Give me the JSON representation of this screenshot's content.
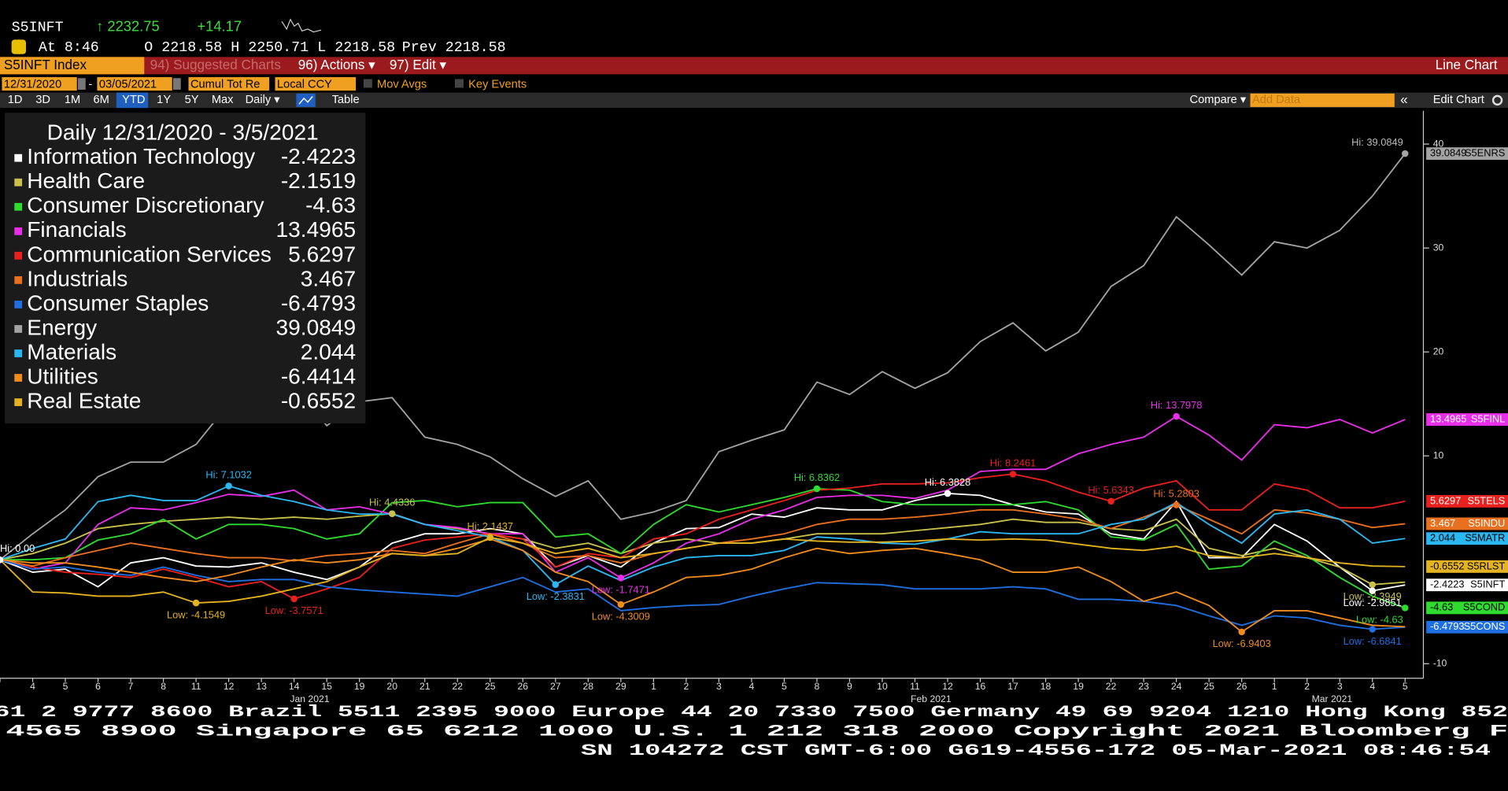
{
  "header": {
    "ticker": "S5INFT",
    "last": "↑ 2232.75",
    "change": "+14.17",
    "time": "At 8:46",
    "open": "O 2218.58",
    "high": "H 2250.71",
    "low": "L 2218.58",
    "prev": "Prev 2218.58"
  },
  "menu": {
    "security": "S5INFT Index",
    "suggested": "94) Suggested Charts",
    "actions": "96) Actions ▾",
    "edit": "97) Edit ▾",
    "view": "Line Chart"
  },
  "settings": {
    "start": "12/31/2020",
    "to": "-",
    "end": "03/05/2021",
    "field": "Cumul Tot Re",
    "currency": "Local CCY",
    "mov_avgs": "Mov Avgs",
    "key_events": "Key Events"
  },
  "toolbar": {
    "periods": [
      "1D",
      "3D",
      "1M",
      "6M",
      "YTD",
      "1Y",
      "5Y",
      "Max"
    ],
    "frequency": "Daily ▾",
    "table": "Table",
    "compare": "Compare ▾",
    "add_data": "Add Data",
    "collapse": "«",
    "edit_chart": "Edit Chart"
  },
  "footer": [
    "61 2 9777 8600 Brazil 5511 2395 9000 Europe 44 20 7330 7500 Germany 49 69 9204 1210 Hong Kong 852",
    "4565 8900      Singapore 65 6212 1000      U.S. 1 212 318 2000      Copyright 2021 Bloomberg F",
    "SN 104272 CST  GMT-6:00 G619-4556-172 05-Mar-2021 08:46:54"
  ],
  "chart_data": {
    "type": "line",
    "legend_title": "Daily 12/31/2020 - 3/5/2021",
    "months": [
      "Jan 2021",
      "Feb 2021",
      "Mar 2021"
    ],
    "categories": [
      null,
      "4",
      "5",
      "6",
      "7",
      "8",
      "11",
      "12",
      "13",
      "14",
      "15",
      "19",
      "20",
      "21",
      "22",
      "25",
      "26",
      "27",
      "28",
      "29",
      "1",
      "2",
      "3",
      "4",
      "5",
      "8",
      "9",
      "10",
      "11",
      "12",
      "16",
      "17",
      "18",
      "19",
      "22",
      "23",
      "24",
      "25",
      "26",
      "1",
      "2",
      "3",
      "4",
      "5"
    ],
    "ylim": [
      -11.4,
      43.2
    ],
    "yticks": [
      -10,
      10,
      20,
      30,
      40
    ],
    "grid": false,
    "series": [
      {
        "name": "Information Technology",
        "ticker": "S5INFT",
        "color": "#ffffff",
        "values": [
          0,
          -1.2,
          -0.9,
          -2.6,
          -0.3,
          0.2,
          -0.6,
          -0.7,
          -0.3,
          -1.2,
          -1.9,
          -0.7,
          1.6,
          2.5,
          2.5,
          3,
          2.5,
          -0.7,
          0.4,
          -0.7,
          1.6,
          3,
          3.1,
          4.4,
          4.1,
          5,
          4.8,
          4.8,
          5.7,
          6.3828,
          6.2,
          5.3,
          4.6,
          4.4,
          2.5,
          2,
          5.6,
          0.2,
          0.2,
          3.4,
          1.8,
          -0.7,
          -2.9851,
          -2.4223
        ]
      },
      {
        "name": "Health Care",
        "color": "#c9c14c",
        "values": [
          0,
          0.6,
          1.6,
          3,
          3.4,
          3.7,
          3.9,
          4.1,
          3.9,
          4.1,
          3.9,
          4.2,
          4.4336,
          3.4,
          3,
          2.5,
          2,
          1.1,
          1.6,
          0.6,
          1.6,
          2,
          1.6,
          1.6,
          2,
          2.5,
          2.5,
          2.5,
          2.8,
          3.1,
          3.4,
          3.9,
          3.6,
          3.6,
          3,
          2.8,
          3.9,
          1.1,
          0.4,
          1.1,
          0.2,
          -0.7,
          -2.3949,
          -2.1519
        ]
      },
      {
        "name": "Consumer Discretionary",
        "ticker": "S5COND",
        "color": "#2edb2e",
        "values": [
          0,
          0,
          0.2,
          1.9,
          2.5,
          3.9,
          2,
          3.4,
          3.4,
          3,
          2,
          2.5,
          5.5,
          5.7,
          5.1,
          5.5,
          5.5,
          2.2,
          2.5,
          0.6,
          3.4,
          5.3,
          4.6,
          5.3,
          6,
          6.8362,
          6.7,
          5.6,
          5.3,
          5.3,
          5.3,
          5.3,
          5.6,
          4.8,
          2.2,
          1.9,
          3.4,
          -0.9,
          -0.6,
          1.8,
          0.4,
          -1.7,
          -3.5,
          -4.63
        ]
      },
      {
        "name": "Financials",
        "ticker": "S5FINL",
        "color": "#e82ee8",
        "values": [
          0,
          -0.9,
          -0.3,
          3.4,
          5,
          4.8,
          5.5,
          6.3,
          6.1,
          6.7,
          4.8,
          5.1,
          4.4,
          3.4,
          3.1,
          2.5,
          2.5,
          -1.2,
          0.2,
          -1.7471,
          -0.3,
          1.6,
          2.5,
          3.9,
          4.8,
          6,
          6.2,
          6.2,
          5.9,
          6.7,
          8.5,
          8.7,
          8.7,
          10.2,
          11.1,
          11.8,
          13.7978,
          12,
          9.6,
          13,
          12.7,
          13.5,
          12.2,
          13.4965
        ]
      },
      {
        "name": "Communication Services",
        "ticker": "S5TELS",
        "color": "#e8201e",
        "values": [
          0,
          -0.7,
          -1.2,
          -1.4,
          -1.7,
          -0.9,
          -1.7,
          -2.6,
          -2.1,
          -3.7571,
          -2.8,
          -1.7,
          1.1,
          1.9,
          2.2,
          2.5,
          2,
          -0.7,
          0.6,
          0.2,
          2,
          2.5,
          3.9,
          4.8,
          5.7,
          6.7,
          6.9,
          7.3,
          7.3,
          7.4,
          7.9,
          8.2461,
          7.6,
          6.5,
          5.6343,
          6.9,
          7.6,
          4.8,
          4.8,
          7.3,
          6.7,
          5,
          5,
          5.6297
        ]
      },
      {
        "name": "Industrials",
        "ticker": "S5INDU",
        "color": "#e8701e",
        "values": [
          0,
          -0.6,
          0.2,
          0.9,
          1.6,
          1.1,
          0.6,
          0.2,
          0.2,
          -0.1,
          0.4,
          0.6,
          0.9,
          0.6,
          1.6,
          2.5,
          1.6,
          0.2,
          0.4,
          -0.3,
          0.6,
          1.1,
          1.6,
          2,
          2.5,
          3.4,
          3.9,
          3.9,
          4.1,
          4.4,
          4.8,
          4.8,
          4.4,
          3.9,
          3,
          4.1,
          5.2803,
          3.9,
          2.5,
          4.8,
          4.5,
          3.9,
          3.1,
          3.467
        ]
      },
      {
        "name": "Consumer Staples",
        "ticker": "S5CONS",
        "color": "#1f6fe0",
        "values": [
          0,
          -0.9,
          -0.7,
          -1.2,
          -1.5,
          -0.7,
          -1.5,
          -2.1,
          -1.9,
          -1.9,
          -2.6,
          -2.9,
          -3.1,
          -3.3,
          -3.5,
          -2.6,
          -1.7,
          -3.1,
          -2.8,
          -4.9,
          -4.6,
          -4.4,
          -4.3,
          -3.5,
          -2.8,
          -2.2,
          -2.3,
          -2.4,
          -2.8,
          -2.8,
          -2.8,
          -2.6,
          -2.8,
          -3.8,
          -3.8,
          -4,
          -4.4,
          -5.4,
          -6.3,
          -5.4,
          -5.6,
          -6.3,
          -6.6841,
          -6.4793
        ]
      },
      {
        "name": "Energy",
        "ticker": "S5ENRS",
        "color": "#a3a3a3",
        "values": [
          0,
          2.5,
          4.8,
          8,
          9.4,
          9.4,
          11.1,
          15,
          14.3,
          16.9,
          12.9,
          15.2,
          15.6,
          11.8,
          11.1,
          9.9,
          7.8,
          6.1,
          7.6,
          3.9,
          4.6,
          5.7,
          10.4,
          11.5,
          12.5,
          17.1,
          15.9,
          18.1,
          16.5,
          18,
          21,
          22.8,
          20.1,
          21.9,
          26.3,
          28.3,
          33,
          30.3,
          27.4,
          30.6,
          30,
          31.7,
          35,
          39.0849
        ]
      },
      {
        "name": "Materials",
        "ticker": "S5MATR",
        "color": "#2bb8f2",
        "values": [
          0,
          1.1,
          2,
          5.6,
          6.2,
          5.7,
          5.7,
          7.1032,
          6.2,
          5.6,
          4.8,
          4.4,
          4.4,
          3.4,
          2.8,
          2.2,
          0.9,
          -2.3831,
          -0.6,
          -2,
          -0.7,
          0.2,
          0.4,
          0.4,
          0.9,
          2.2,
          2,
          1.6,
          1.5,
          2,
          2.7,
          2.5,
          2.5,
          2.5,
          3.4,
          3.9,
          5.5,
          3.4,
          1.6,
          4.4,
          4.8,
          3.9,
          1.6,
          2.044
        ]
      },
      {
        "name": "Utilities",
        "color": "#f08c1e",
        "values": [
          0,
          -0.3,
          -0.3,
          -0.7,
          -1.2,
          -1.7,
          -2.1,
          -1.5,
          -0.7,
          0,
          -0.3,
          0,
          0.6,
          0.4,
          1.1,
          2,
          0.9,
          -1.2,
          -2.1,
          -4.3009,
          -3.1,
          -1.7,
          -1.5,
          -0.9,
          0.2,
          1.1,
          0.6,
          0.9,
          1.1,
          0.6,
          0,
          -1.2,
          -1.2,
          -0.7,
          -2.1,
          -4,
          -3.1,
          -4.4,
          -6.9403,
          -4.9,
          -4.9,
          -5.6,
          -6.3,
          -6.4414
        ]
      },
      {
        "name": "Real Estate",
        "ticker": "S5RLST",
        "color": "#e3b322",
        "values": [
          0,
          -3.1,
          -3.2,
          -3.5,
          -3.5,
          -3.1,
          -4.1549,
          -4,
          -3.5,
          -2.8,
          -2.1,
          -0.7,
          0.6,
          0.4,
          0.6,
          2.1437,
          1.6,
          0.6,
          1.1,
          0.2,
          0.6,
          1.1,
          1.6,
          1.6,
          2,
          1.8,
          1.7,
          1.7,
          1.8,
          2,
          1.9,
          2,
          1.9,
          1.5,
          1.1,
          0.9,
          1.3,
          0.4,
          0.2,
          0.6,
          0.2,
          -0.3,
          -0.6,
          -0.6552
        ]
      }
    ],
    "annotations": [
      {
        "label": "Hi: 0.00",
        "value": 0
      },
      {
        "label": "Hi: 7.1032",
        "value": 7.1032
      },
      {
        "label": "Hi: 4.4336",
        "value": 4.4336
      },
      {
        "label": "Hi: 2.1437",
        "value": 2.1437
      },
      {
        "label": "Hi: 6.8362",
        "value": 6.8362
      },
      {
        "label": "Hi: 6.3828",
        "value": 6.3828
      },
      {
        "label": "Hi: 8.2461",
        "value": 8.2461
      },
      {
        "label": "Hi: 5.6343",
        "value": 5.6343
      },
      {
        "label": "Hi: 5.2803",
        "value": 5.2803
      },
      {
        "label": "Hi: 13.7978",
        "value": 13.7978
      },
      {
        "label": "Hi: 39.0849",
        "value": 39.0849
      },
      {
        "label": "Low: -4.1549",
        "value": -4.1549
      },
      {
        "label": "Low: -3.7571",
        "value": -3.7571
      },
      {
        "label": "Low: -2.3831",
        "value": -2.3831
      },
      {
        "label": "Low: -1.7471",
        "value": -1.7471
      },
      {
        "label": "Low: -4.3009",
        "value": -4.3009
      },
      {
        "label": "Low: -6.9403",
        "value": -6.9403
      },
      {
        "label": "Low: -2.3949",
        "value": -2.3949
      },
      {
        "label": "Low: -2.9851",
        "value": -2.9851
      },
      {
        "label": "Low: -6.6841",
        "value": -6.6841
      },
      {
        "label": "Low: -4.63",
        "value": -4.63
      }
    ]
  }
}
